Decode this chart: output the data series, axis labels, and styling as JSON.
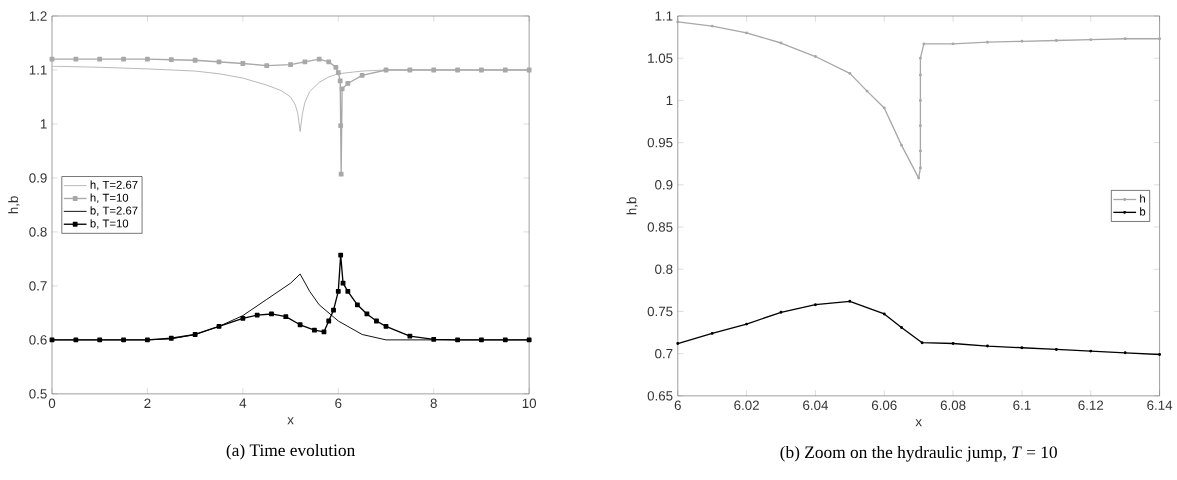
{
  "chart_data": [
    {
      "type": "line",
      "title": "(a) Time evolution",
      "xlabel": "x",
      "ylabel": "h,b",
      "xlim": [
        0,
        10
      ],
      "ylim": [
        0.5,
        1.2
      ],
      "xticks": [
        0,
        2,
        4,
        6,
        8,
        10
      ],
      "yticks": [
        0.5,
        0.6,
        0.7,
        0.8,
        0.9,
        1,
        1.1,
        1.2
      ],
      "legend": "left",
      "series": [
        {
          "name": "h, T=2.67",
          "color": "#b4b4b4",
          "marker": "none",
          "x": [
            0,
            1,
            2,
            3,
            3.5,
            4,
            4.5,
            4.8,
            5,
            5.1,
            5.15,
            5.2,
            5.25,
            5.3,
            5.4,
            5.6,
            5.8,
            6,
            6.5,
            7,
            8,
            10
          ],
          "values": [
            1.107,
            1.105,
            1.102,
            1.098,
            1.093,
            1.085,
            1.072,
            1.062,
            1.05,
            1.035,
            1.02,
            0.986,
            1.02,
            1.04,
            1.06,
            1.077,
            1.087,
            1.093,
            1.098,
            1.1,
            1.1,
            1.1
          ]
        },
        {
          "name": "h, T=10",
          "color": "#a8a8a8",
          "marker": "square",
          "x": [
            0,
            0.5,
            1,
            1.5,
            2,
            2.5,
            3,
            3.5,
            4,
            4.5,
            5,
            5.3,
            5.6,
            5.8,
            5.95,
            6.0,
            6.04,
            6.05,
            6.06,
            6.08,
            6.2,
            6.5,
            7,
            7.5,
            8,
            8.5,
            9,
            9.5,
            10
          ],
          "values": [
            1.12,
            1.12,
            1.12,
            1.12,
            1.12,
            1.119,
            1.118,
            1.115,
            1.112,
            1.108,
            1.11,
            1.115,
            1.12,
            1.115,
            1.105,
            1.095,
            1.08,
            0.997,
            0.907,
            1.065,
            1.075,
            1.09,
            1.1,
            1.1,
            1.1,
            1.1,
            1.1,
            1.1,
            1.1
          ]
        },
        {
          "name": "b, T=2.67",
          "color": "#000000",
          "marker": "none",
          "x": [
            0,
            2,
            2.5,
            3,
            3.5,
            4,
            4.5,
            5,
            5.2,
            5.4,
            5.6,
            6,
            6.5,
            7,
            8,
            10
          ],
          "values": [
            0.6,
            0.6,
            0.602,
            0.61,
            0.625,
            0.645,
            0.675,
            0.705,
            0.722,
            0.69,
            0.665,
            0.635,
            0.61,
            0.6,
            0.6,
            0.6
          ]
        },
        {
          "name": "b, T=10",
          "color": "#000000",
          "marker": "square",
          "x": [
            0,
            0.5,
            1,
            1.5,
            2,
            2.5,
            3,
            3.5,
            4,
            4.3,
            4.6,
            4.9,
            5.2,
            5.5,
            5.7,
            5.8,
            5.9,
            6.0,
            6.05,
            6.1,
            6.2,
            6.4,
            6.6,
            6.8,
            7,
            7.5,
            8,
            8.5,
            9,
            9.5,
            10
          ],
          "values": [
            0.6,
            0.6,
            0.6,
            0.6,
            0.6,
            0.603,
            0.61,
            0.625,
            0.64,
            0.646,
            0.648,
            0.643,
            0.628,
            0.618,
            0.615,
            0.635,
            0.655,
            0.69,
            0.757,
            0.705,
            0.69,
            0.665,
            0.648,
            0.635,
            0.625,
            0.607,
            0.601,
            0.6,
            0.6,
            0.6,
            0.6
          ]
        }
      ]
    },
    {
      "type": "line",
      "title": "(b) Zoom on the hydraulic jump, *T* = 10",
      "xlabel": "x",
      "ylabel": "h,b",
      "xlim": [
        6,
        6.14
      ],
      "ylim": [
        0.65,
        1.1
      ],
      "xticks": [
        6,
        6.02,
        6.04,
        6.06,
        6.08,
        6.1,
        6.12,
        6.14
      ],
      "yticks": [
        0.65,
        0.7,
        0.75,
        0.8,
        0.85,
        0.9,
        0.95,
        1,
        1.05,
        1.1
      ],
      "legend": "right",
      "marker": "circle",
      "series": [
        {
          "name": "h",
          "color": "#a8a8a8",
          "x": [
            6,
            6.01,
            6.02,
            6.03,
            6.04,
            6.05,
            6.055,
            6.06,
            6.065,
            6.07,
            6.0705,
            6.0705,
            6.0705,
            6.0705,
            6.0705,
            6.0705,
            6.0715,
            6.08,
            6.09,
            6.1,
            6.11,
            6.12,
            6.13,
            6.14
          ],
          "values": [
            1.093,
            1.088,
            1.08,
            1.068,
            1.052,
            1.032,
            1.011,
            0.991,
            0.947,
            0.908,
            0.92,
            0.94,
            0.97,
            1.0,
            1.03,
            1.05,
            1.067,
            1.067,
            1.069,
            1.07,
            1.071,
            1.072,
            1.073,
            1.073
          ]
        },
        {
          "name": "b",
          "color": "#000000",
          "x": [
            6,
            6.01,
            6.02,
            6.03,
            6.04,
            6.05,
            6.06,
            6.065,
            6.071,
            6.08,
            6.09,
            6.1,
            6.11,
            6.12,
            6.13,
            6.14
          ],
          "values": [
            0.712,
            0.724,
            0.735,
            0.749,
            0.758,
            0.762,
            0.747,
            0.731,
            0.713,
            0.712,
            0.709,
            0.707,
            0.705,
            0.703,
            0.701,
            0.699
          ]
        }
      ]
    }
  ]
}
